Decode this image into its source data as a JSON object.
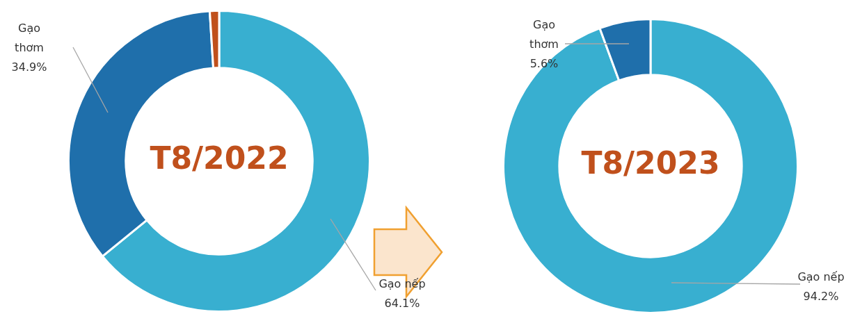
{
  "chart_data": [
    {
      "type": "donut",
      "title": "T8/2022",
      "categories": [
        "Gạo nếp",
        "Gạo thơm",
        null
      ],
      "values": [
        64.1,
        34.9,
        1.0
      ],
      "colors": [
        "#38afd0",
        "#1f6fab",
        "#c0501c"
      ],
      "value_labels": [
        "64.1%",
        "34.9%",
        null
      ],
      "legend": false
    },
    {
      "type": "donut",
      "title": "T8/2023",
      "categories": [
        "Gạo nếp",
        "Gạo thơm"
      ],
      "values": [
        94.2,
        5.6
      ],
      "colors": [
        "#38afd0",
        "#1f6fab"
      ],
      "value_labels": [
        "94.2%",
        "5.6%"
      ],
      "legend": false
    }
  ]
}
